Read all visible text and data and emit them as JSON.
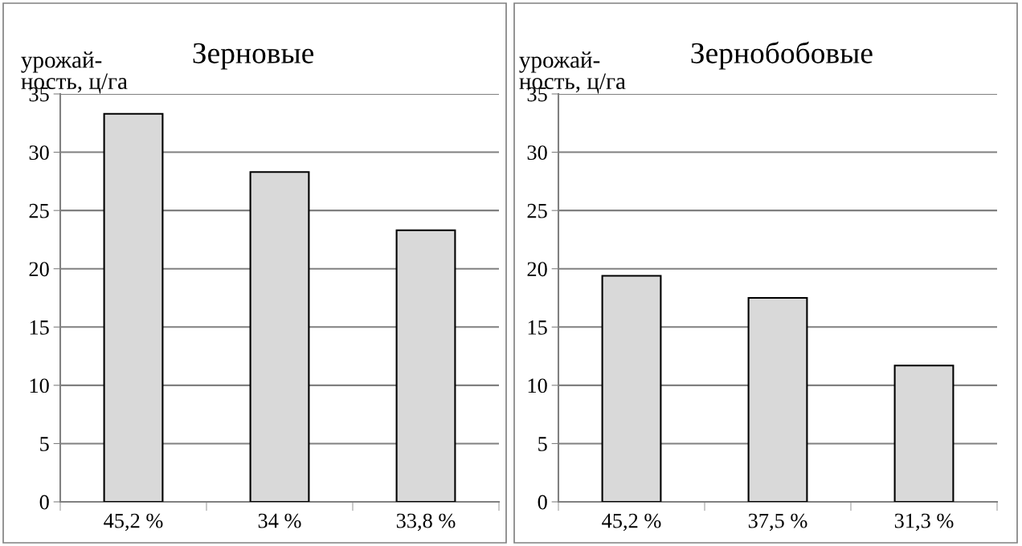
{
  "chart_data": [
    {
      "type": "bar",
      "title": "Зерновые",
      "ylabel": "урожай-\nность, ц/га",
      "categories": [
        "45,2 %",
        "34 %",
        "33,8 %"
      ],
      "values": [
        33.3,
        28.3,
        23.3
      ],
      "color": "#d9d9d9",
      "ylim": [
        0,
        35
      ],
      "yticks": [
        0,
        5,
        10,
        15,
        20,
        25,
        30,
        35
      ],
      "grid": "y"
    },
    {
      "type": "bar",
      "title": "Зернобобовые",
      "ylabel": "урожай-\nность, ц/га",
      "categories": [
        "45,2 %",
        "37,5 %",
        "31,3 %"
      ],
      "values": [
        19.4,
        17.5,
        11.7
      ],
      "color": "#d9d9d9",
      "ylim": [
        0,
        35
      ],
      "yticks": [
        0,
        5,
        10,
        15,
        20,
        25,
        30,
        35
      ],
      "grid": "y"
    }
  ]
}
